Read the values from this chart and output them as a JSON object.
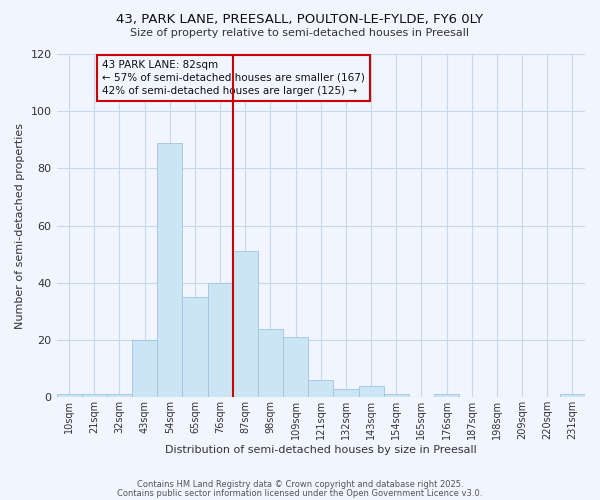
{
  "title": "43, PARK LANE, PREESALL, POULTON-LE-FYLDE, FY6 0LY",
  "subtitle": "Size of property relative to semi-detached houses in Preesall",
  "xlabel": "Distribution of semi-detached houses by size in Preesall",
  "ylabel": "Number of semi-detached properties",
  "bar_labels": [
    "10sqm",
    "21sqm",
    "32sqm",
    "43sqm",
    "54sqm",
    "65sqm",
    "76sqm",
    "87sqm",
    "98sqm",
    "109sqm",
    "121sqm",
    "132sqm",
    "143sqm",
    "154sqm",
    "165sqm",
    "176sqm",
    "187sqm",
    "198sqm",
    "209sqm",
    "220sqm",
    "231sqm"
  ],
  "bar_values": [
    1,
    1,
    1,
    20,
    89,
    35,
    40,
    51,
    24,
    21,
    6,
    3,
    4,
    1,
    0,
    1,
    0,
    0,
    0,
    0,
    1
  ],
  "bar_color": "#cce5f5",
  "bar_edge_color": "#a0c4e0",
  "grid_color": "#c8d8ec",
  "background_color": "#f0f5ff",
  "vline_x": 7,
  "vline_color": "#cc0000",
  "annotation_title": "43 PARK LANE: 82sqm",
  "annotation_line1": "← 57% of semi-detached houses are smaller (167)",
  "annotation_line2": "42% of semi-detached houses are larger (125) →",
  "annotation_box_color": "#cc0000",
  "ylim": [
    0,
    120
  ],
  "yticks": [
    0,
    20,
    40,
    60,
    80,
    100,
    120
  ],
  "footer1": "Contains HM Land Registry data © Crown copyright and database right 2025.",
  "footer2": "Contains public sector information licensed under the Open Government Licence v3.0."
}
